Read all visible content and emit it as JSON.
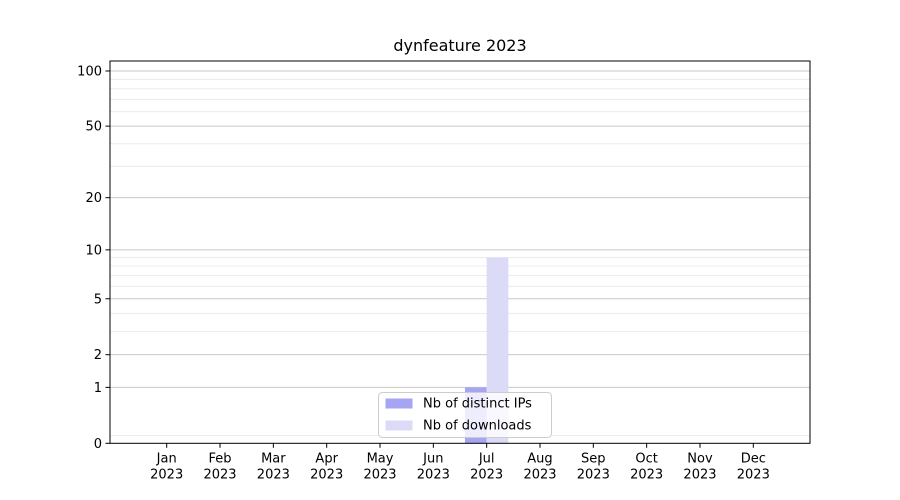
{
  "figure": {
    "title": "dynfeature 2023"
  },
  "chart_data": {
    "type": "bar",
    "title": "dynfeature 2023",
    "xlabel": "",
    "ylabel": "",
    "x_tick_months": [
      "Jan",
      "Feb",
      "Mar",
      "Apr",
      "May",
      "Jun",
      "Jul",
      "Aug",
      "Sep",
      "Oct",
      "Nov",
      "Dec"
    ],
    "x_tick_year": "2023",
    "series": [
      {
        "name": "Nb of distinct IPs",
        "color": "#a5a5f3",
        "values": [
          0,
          0,
          0,
          0,
          0,
          0,
          1,
          0,
          0,
          0,
          0,
          0
        ]
      },
      {
        "name": "Nb of downloads",
        "color": "#dbdbf8",
        "values": [
          0,
          0,
          0,
          0,
          0,
          0,
          9,
          0,
          0,
          0,
          0,
          0
        ]
      }
    ],
    "yscale": "log1p",
    "ylim": [
      0,
      113.3
    ],
    "y_major_ticks": [
      0,
      1,
      2,
      5,
      10,
      20,
      50,
      100
    ],
    "y_minor_gridlines": [
      0.1,
      3,
      4,
      6,
      7,
      8,
      9,
      30,
      40,
      60,
      70,
      80,
      90
    ],
    "grid": true,
    "legend": {
      "position": "lower center",
      "items": [
        "Nb of distinct IPs",
        "Nb of downloads"
      ]
    },
    "colors": {
      "grid_major": "#c9c9c9",
      "grid_minor": "#ececec",
      "axis": "#000000",
      "legend_border": "#cccccc",
      "legend_bg_rgba": "rgba(255,255,255,0.8)",
      "background": "#ffffff"
    }
  }
}
